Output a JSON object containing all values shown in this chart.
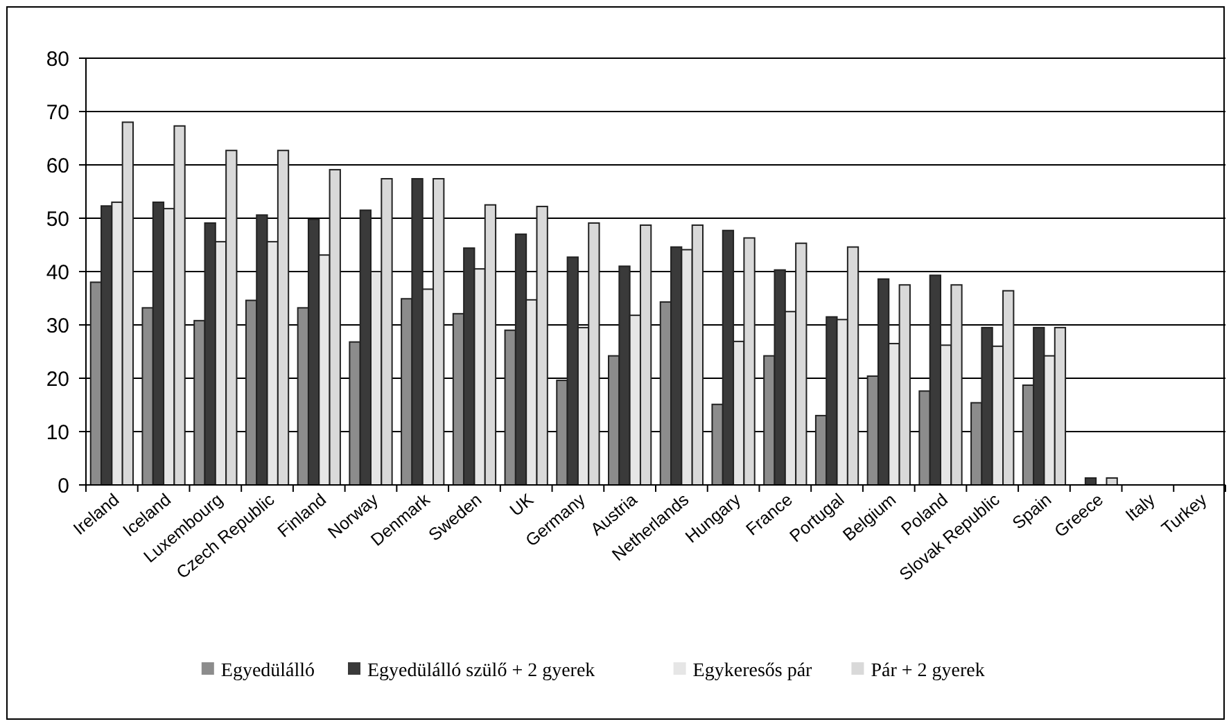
{
  "chart_data": {
    "type": "bar",
    "categories": [
      "Ireland",
      "Iceland",
      "Luxembourg",
      "Czech Republic",
      "Finland",
      "Norway",
      "Denmark",
      "Sweden",
      "UK",
      "Germany",
      "Austria",
      "Netherlands",
      "Hungary",
      "France",
      "Portugal",
      "Belgium",
      "Poland",
      "Slovak Republic",
      "Spain",
      "Greece",
      "Italy",
      "Turkey"
    ],
    "series": [
      {
        "name": "Egyedülálló",
        "color": "#8c8c8c",
        "values": [
          38,
          33.2,
          30.8,
          34.6,
          33.2,
          26.8,
          34.9,
          32.1,
          29,
          19.6,
          24.2,
          34.3,
          15.1,
          24.2,
          13,
          20.4,
          17.6,
          15.4,
          18.7,
          0,
          0,
          0
        ]
      },
      {
        "name": "Egyedülálló szülő + 2 gyerek",
        "color": "#3a3a3a",
        "values": [
          52.3,
          53,
          49.1,
          50.6,
          49.8,
          51.5,
          57.4,
          44.4,
          47,
          42.7,
          41,
          44.6,
          47.7,
          40.3,
          31.5,
          38.6,
          39.3,
          29.5,
          29.5,
          1.3,
          0,
          0
        ]
      },
      {
        "name": "Egykeresős pár",
        "color": "#e6e6e6",
        "values": [
          53,
          51.8,
          45.6,
          45.6,
          43.1,
          40,
          36.7,
          40.5,
          34.7,
          29.5,
          31.8,
          44.1,
          26.9,
          32.5,
          31,
          26.5,
          26.2,
          26,
          24.2,
          0,
          0,
          0
        ]
      },
      {
        "name": "Pár + 2 gyerek",
        "color": "#d9d9d9",
        "values": [
          68,
          67.3,
          62.7,
          62.7,
          59.1,
          57.4,
          57.4,
          52.5,
          52.2,
          49.1,
          48.7,
          48.7,
          46.3,
          45.3,
          44.6,
          37.5,
          37.5,
          36.4,
          29.5,
          1.3,
          0,
          0
        ]
      }
    ],
    "ylim": [
      0,
      80
    ],
    "yticks": [
      0,
      10,
      20,
      30,
      40,
      50,
      60,
      70,
      80
    ],
    "grid": "y",
    "legend": "bottom"
  }
}
